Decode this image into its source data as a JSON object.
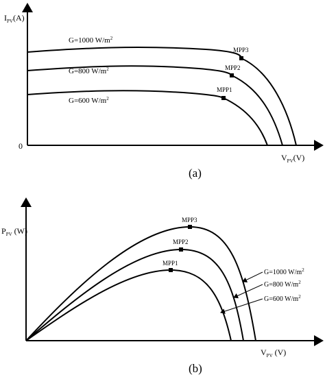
{
  "panel_a": {
    "y_label": {
      "main": "I",
      "sub": "PV",
      "unit": "(A)"
    },
    "origin": "0",
    "x_label": {
      "main": "V",
      "sub": "PV",
      "unit": "(V)"
    },
    "curves": [
      {
        "label": {
          "text": "G=1000 W/m",
          "sup": "2"
        },
        "mpp": "MPP3"
      },
      {
        "label": {
          "text": "G=800 W/m",
          "sup": "2"
        },
        "mpp": "MPP2"
      },
      {
        "label": {
          "text": "G=600 W/m",
          "sup": "2"
        },
        "mpp": "MPP1"
      }
    ],
    "caption": "(a)"
  },
  "panel_b": {
    "y_label": {
      "main": "P",
      "sub": "PV",
      "unit": " (W)"
    },
    "x_label": {
      "main": "V",
      "sub": "PV",
      "unit": " (V)"
    },
    "curves": [
      {
        "label": {
          "text": "G=1000 W/m",
          "sup": "2"
        },
        "mpp": "MPP3"
      },
      {
        "label": {
          "text": "G=800 W/m",
          "sup": "2"
        },
        "mpp": "MPP2"
      },
      {
        "label": {
          "text": "G=600 W/m",
          "sup": "2"
        },
        "mpp": "MPP1"
      }
    ],
    "caption": "(b)"
  }
}
